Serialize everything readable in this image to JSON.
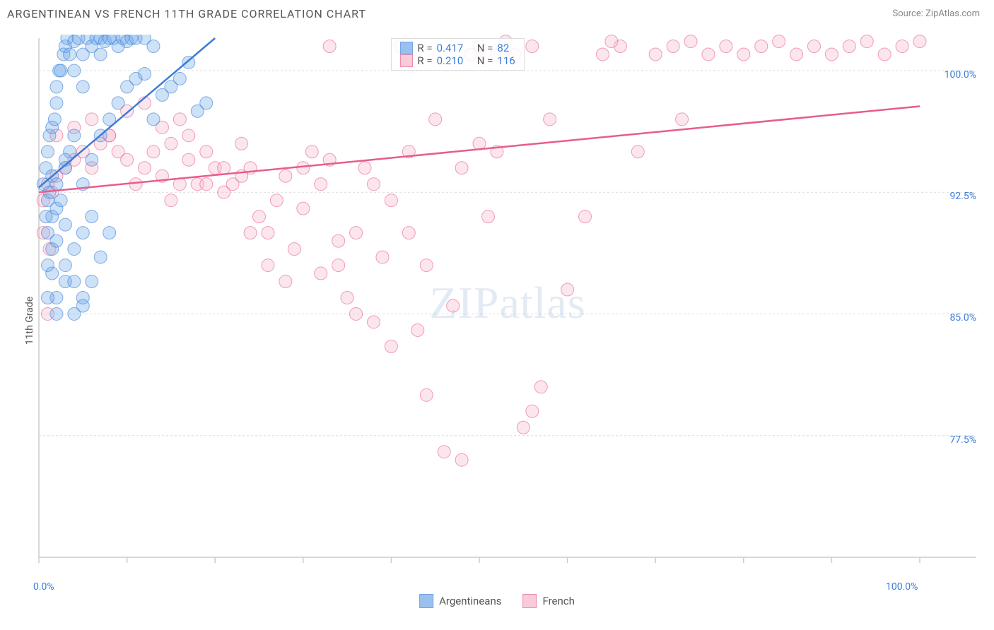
{
  "title": "ARGENTINEAN VS FRENCH 11TH GRADE CORRELATION CHART",
  "source_label": "Source: ",
  "source_name": "ZipAtlas.com",
  "ylabel": "11th Grade",
  "watermark_text": "ZIPatlas",
  "chart": {
    "type": "scatter",
    "background_color": "#ffffff",
    "grid_color": "#dcdcdc",
    "axis_color": "#cccccc",
    "tick_color": "#cccccc",
    "xlim": [
      0,
      100
    ],
    "ylim": [
      70,
      102
    ],
    "xtick_positions": [
      0,
      10,
      20,
      30,
      40,
      50,
      60,
      70,
      80,
      90,
      100
    ],
    "xtick_labels": {
      "0": "0.0%",
      "100": "100.0%"
    },
    "ytick_positions": [
      77.5,
      85.0,
      92.5,
      100.0
    ],
    "ytick_labels": [
      "77.5%",
      "85.0%",
      "92.5%",
      "100.0%"
    ],
    "label_color": "#3b7dd8",
    "label_fontsize": 14,
    "marker_radius": 9,
    "marker_opacity": 0.35,
    "line_width": 2.5,
    "series": [
      {
        "name": "Argentineans",
        "fill_color": "#6fa8e8",
        "stroke_color": "#3b7dd8",
        "r_value": "0.417",
        "n_value": "82",
        "trendline": {
          "x1": 0,
          "y1": 92.8,
          "x2": 20,
          "y2": 102
        },
        "points": [
          [
            0.5,
            93
          ],
          [
            0.8,
            94
          ],
          [
            1,
            95
          ],
          [
            1,
            92
          ],
          [
            1.2,
            96
          ],
          [
            1.5,
            96.5
          ],
          [
            1.5,
            93.5
          ],
          [
            1.8,
            97
          ],
          [
            2,
            98
          ],
          [
            2,
            99
          ],
          [
            2.3,
            100
          ],
          [
            2.5,
            100
          ],
          [
            2.8,
            101
          ],
          [
            3,
            101.5
          ],
          [
            3.2,
            102
          ],
          [
            3.5,
            101
          ],
          [
            4,
            100
          ],
          [
            4,
            101.8
          ],
          [
            4.5,
            102
          ],
          [
            5,
            101
          ],
          [
            5,
            99
          ],
          [
            5.5,
            102
          ],
          [
            6,
            101.5
          ],
          [
            6.5,
            102
          ],
          [
            7,
            101
          ],
          [
            7,
            102
          ],
          [
            7.5,
            101.8
          ],
          [
            8,
            102
          ],
          [
            8.5,
            102
          ],
          [
            9,
            101.5
          ],
          [
            9.5,
            102
          ],
          [
            10,
            101.8
          ],
          [
            10.5,
            102
          ],
          [
            11,
            102
          ],
          [
            12,
            102
          ],
          [
            13,
            101.5
          ],
          [
            1,
            90
          ],
          [
            1.5,
            91
          ],
          [
            2,
            91.5
          ],
          [
            2.5,
            92
          ],
          [
            3,
            94
          ],
          [
            3.5,
            95
          ],
          [
            4,
            96
          ],
          [
            1,
            88
          ],
          [
            1.5,
            89
          ],
          [
            2,
            89.5
          ],
          [
            3,
            90.5
          ],
          [
            2,
            86
          ],
          [
            3,
            87
          ],
          [
            4,
            89
          ],
          [
            5,
            90
          ],
          [
            6,
            91
          ],
          [
            2,
            85
          ],
          [
            1,
            86
          ],
          [
            1.5,
            87.5
          ],
          [
            0.8,
            91
          ],
          [
            1.2,
            92.5
          ],
          [
            5,
            93
          ],
          [
            6,
            94.5
          ],
          [
            7,
            96
          ],
          [
            8,
            97
          ],
          [
            9,
            98
          ],
          [
            10,
            99
          ],
          [
            11,
            99.5
          ],
          [
            12,
            99.8
          ],
          [
            13,
            97
          ],
          [
            14,
            98.5
          ],
          [
            15,
            99
          ],
          [
            16,
            99.5
          ],
          [
            17,
            100.5
          ],
          [
            18,
            97.5
          ],
          [
            19,
            98
          ],
          [
            3,
            88
          ],
          [
            4,
            87
          ],
          [
            5,
            86
          ],
          [
            6,
            87
          ],
          [
            7,
            88.5
          ],
          [
            8,
            90
          ],
          [
            4,
            85
          ],
          [
            5,
            85.5
          ],
          [
            2,
            93
          ],
          [
            3,
            94.5
          ]
        ]
      },
      {
        "name": "French",
        "fill_color": "#f7b6ca",
        "stroke_color": "#e85d8a",
        "r_value": "0.210",
        "n_value": "116",
        "trendline": {
          "x1": 0,
          "y1": 92.5,
          "x2": 100,
          "y2": 97.8
        },
        "points": [
          [
            0.5,
            92
          ],
          [
            1,
            93
          ],
          [
            1.5,
            92.5
          ],
          [
            2,
            93.5
          ],
          [
            3,
            94
          ],
          [
            4,
            94.5
          ],
          [
            5,
            95
          ],
          [
            6,
            94
          ],
          [
            7,
            95.5
          ],
          [
            8,
            96
          ],
          [
            9,
            95
          ],
          [
            10,
            94.5
          ],
          [
            11,
            93
          ],
          [
            12,
            94
          ],
          [
            13,
            95
          ],
          [
            14,
            93.5
          ],
          [
            15,
            92
          ],
          [
            16,
            93
          ],
          [
            17,
            94.5
          ],
          [
            18,
            93
          ],
          [
            19,
            95
          ],
          [
            20,
            94
          ],
          [
            21,
            92.5
          ],
          [
            22,
            93
          ],
          [
            23,
            95.5
          ],
          [
            24,
            94
          ],
          [
            25,
            91
          ],
          [
            26,
            90
          ],
          [
            27,
            92
          ],
          [
            28,
            93.5
          ],
          [
            29,
            89
          ],
          [
            30,
            91.5
          ],
          [
            31,
            95
          ],
          [
            32,
            93
          ],
          [
            33,
            94.5
          ],
          [
            34,
            88
          ],
          [
            35,
            86
          ],
          [
            36,
            90
          ],
          [
            37,
            94
          ],
          [
            38,
            93
          ],
          [
            39,
            88.5
          ],
          [
            40,
            83
          ],
          [
            41,
            101.5
          ],
          [
            42,
            95
          ],
          [
            43,
            84
          ],
          [
            44,
            80
          ],
          [
            45,
            97
          ],
          [
            46,
            76.5
          ],
          [
            47,
            85.5
          ],
          [
            48,
            76
          ],
          [
            49,
            101
          ],
          [
            50,
            101.5
          ],
          [
            51,
            91
          ],
          [
            52,
            95
          ],
          [
            53,
            101.8
          ],
          [
            54,
            101
          ],
          [
            55,
            78
          ],
          [
            56,
            101.5
          ],
          [
            57,
            80.5
          ],
          [
            58,
            97
          ],
          [
            60,
            86.5
          ],
          [
            62,
            91
          ],
          [
            64,
            101
          ],
          [
            66,
            101.5
          ],
          [
            68,
            95
          ],
          [
            70,
            101
          ],
          [
            72,
            101.5
          ],
          [
            74,
            101.8
          ],
          [
            76,
            101
          ],
          [
            78,
            101.5
          ],
          [
            80,
            101
          ],
          [
            82,
            101.5
          ],
          [
            84,
            101.8
          ],
          [
            86,
            101
          ],
          [
            88,
            101.5
          ],
          [
            90,
            101
          ],
          [
            92,
            101.5
          ],
          [
            94,
            101.8
          ],
          [
            96,
            101
          ],
          [
            98,
            101.5
          ],
          [
            100,
            101.8
          ],
          [
            2,
            96
          ],
          [
            4,
            96.5
          ],
          [
            6,
            97
          ],
          [
            8,
            96
          ],
          [
            10,
            97.5
          ],
          [
            12,
            98
          ],
          [
            14,
            96.5
          ],
          [
            16,
            97
          ],
          [
            1,
            85
          ],
          [
            0.5,
            90
          ],
          [
            1.2,
            89
          ],
          [
            24,
            90
          ],
          [
            26,
            88
          ],
          [
            28,
            87
          ],
          [
            30,
            94
          ],
          [
            32,
            87.5
          ],
          [
            34,
            89.5
          ],
          [
            36,
            85
          ],
          [
            38,
            84.5
          ],
          [
            40,
            92
          ],
          [
            42,
            90
          ],
          [
            44,
            88
          ],
          [
            15,
            95.5
          ],
          [
            17,
            96
          ],
          [
            19,
            93
          ],
          [
            21,
            94
          ],
          [
            23,
            93.5
          ],
          [
            56,
            79
          ],
          [
            65,
            101.8
          ],
          [
            73,
            97
          ],
          [
            52,
            101
          ],
          [
            50,
            95.5
          ],
          [
            48,
            94
          ],
          [
            33,
            101.5
          ]
        ]
      }
    ]
  },
  "stats_legend": {
    "r_label": "R = ",
    "n_label": "N = "
  },
  "bottom_legend": {
    "items": [
      "Argentineans",
      "French"
    ]
  }
}
